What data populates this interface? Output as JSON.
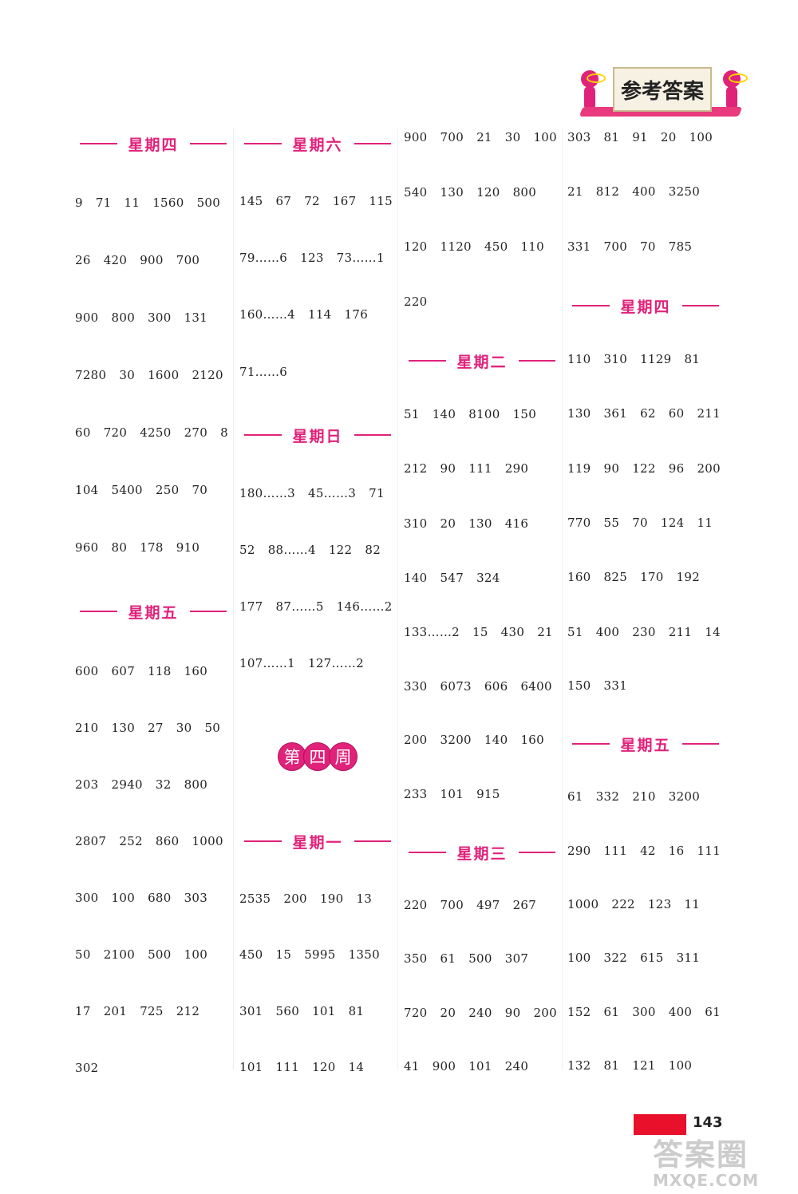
{
  "banner": {
    "title": "参考答案"
  },
  "week_badge": [
    "第",
    "四",
    "周"
  ],
  "page_number": "143",
  "watermark": {
    "top": "答案圈",
    "bottom": "MXQE.COM"
  },
  "columns": [
    {
      "blocks": [
        {
          "header": "星期四",
          "rows": [
            [
              "9",
              "71",
              "11",
              "1560",
              "500"
            ],
            [
              "26",
              "420",
              "900",
              "700"
            ],
            [
              "900",
              "800",
              "300",
              "131"
            ],
            [
              "7280",
              "30",
              "1600",
              "2120"
            ],
            [
              "60",
              "720",
              "4250",
              "270",
              "8"
            ],
            [
              "104",
              "5400",
              "250",
              "70"
            ],
            [
              "960",
              "80",
              "178",
              "910"
            ]
          ]
        },
        {
          "header": "星期五",
          "rows": [
            [
              "600",
              "607",
              "118",
              "160"
            ],
            [
              "210",
              "130",
              "27",
              "30",
              "50"
            ],
            [
              "203",
              "2940",
              "32",
              "800"
            ],
            [
              "2807",
              "252",
              "860",
              "1000"
            ],
            [
              "300",
              "100",
              "680",
              "303"
            ],
            [
              "50",
              "2100",
              "500",
              "100"
            ],
            [
              "17",
              "201",
              "725",
              "212"
            ],
            [
              "302"
            ]
          ]
        }
      ]
    },
    {
      "blocks": [
        {
          "header": "星期六",
          "rows": [
            [
              "145",
              "67",
              "72",
              "167",
              "115"
            ],
            [
              "79……6",
              "123",
              "73……1"
            ],
            [
              "160……4",
              "114",
              "176"
            ],
            [
              "71……6"
            ]
          ]
        },
        {
          "header": "星期日",
          "rows": [
            [
              "180……3",
              "45……3",
              "71"
            ],
            [
              "52",
              "88……4",
              "122",
              "82"
            ],
            [
              "177",
              "87……5",
              "146……2"
            ],
            [
              "107……1",
              "127……2"
            ]
          ]
        },
        {
          "header": "星期一",
          "rows": [
            [
              "2535",
              "200",
              "190",
              "13"
            ],
            [
              "450",
              "15",
              "5995",
              "1350"
            ],
            [
              "301",
              "560",
              "101",
              "81"
            ],
            [
              "101",
              "111",
              "120",
              "14"
            ]
          ]
        }
      ]
    },
    {
      "blocks": [
        {
          "header": "",
          "rows": [
            [
              "900",
              "700",
              "21",
              "30",
              "100"
            ],
            [
              "540",
              "130",
              "120",
              "800"
            ],
            [
              "120",
              "1120",
              "450",
              "110"
            ],
            [
              "220"
            ]
          ]
        },
        {
          "header": "星期二",
          "rows": [
            [
              "51",
              "140",
              "8100",
              "150"
            ],
            [
              "212",
              "90",
              "111",
              "290"
            ],
            [
              "310",
              "20",
              "130",
              "416"
            ],
            [
              "140",
              "547",
              "324"
            ],
            [
              "133……2",
              "15",
              "430",
              "21"
            ],
            [
              "330",
              "6073",
              "606",
              "6400"
            ],
            [
              "200",
              "3200",
              "140",
              "160"
            ],
            [
              "233",
              "101",
              "915"
            ]
          ]
        },
        {
          "header": "星期三",
          "rows": [
            [
              "220",
              "700",
              "497",
              "267"
            ],
            [
              "350",
              "61",
              "500",
              "307"
            ],
            [
              "720",
              "20",
              "240",
              "90",
              "200"
            ],
            [
              "41",
              "900",
              "101",
              "240"
            ]
          ]
        }
      ]
    },
    {
      "blocks": [
        {
          "header": "",
          "rows": [
            [
              "303",
              "81",
              "91",
              "20",
              "100"
            ],
            [
              "21",
              "812",
              "400",
              "3250"
            ],
            [
              "331",
              "700",
              "70",
              "785"
            ]
          ]
        },
        {
          "header": "星期四",
          "rows": [
            [
              "110",
              "310",
              "1129",
              "81"
            ],
            [
              "130",
              "361",
              "62",
              "60",
              "211"
            ],
            [
              "119",
              "90",
              "122",
              "96",
              "200"
            ],
            [
              "770",
              "55",
              "70",
              "124",
              "11"
            ],
            [
              "160",
              "825",
              "170",
              "192"
            ],
            [
              "51",
              "400",
              "230",
              "211",
              "14"
            ],
            [
              "150",
              "331"
            ]
          ]
        },
        {
          "header": "星期五",
          "rows": [
            [
              "61",
              "332",
              "210",
              "3200"
            ],
            [
              "290",
              "111",
              "42",
              "16",
              "111"
            ],
            [
              "1000",
              "222",
              "123",
              "11"
            ],
            [
              "100",
              "322",
              "615",
              "311"
            ],
            [
              "152",
              "61",
              "300",
              "400",
              "61"
            ],
            [
              "132",
              "81",
              "121",
              "100"
            ]
          ]
        }
      ]
    }
  ]
}
